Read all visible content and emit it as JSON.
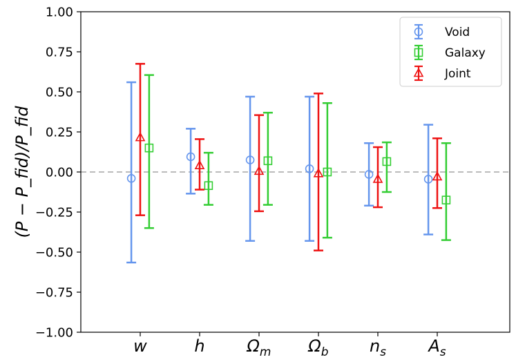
{
  "chart_data": {
    "type": "errorbar",
    "ylabel": "(P − P_fid)/P_fid",
    "ylim": [
      -1.0,
      1.0
    ],
    "yticks": [
      -1.0,
      -0.75,
      -0.5,
      -0.25,
      0.0,
      0.25,
      0.5,
      0.75,
      1.0
    ],
    "ytick_labels": [
      "−1.00",
      "−0.75",
      "−0.50",
      "−0.25",
      "0.00",
      "0.25",
      "0.50",
      "0.75",
      "1.00"
    ],
    "categories": [
      {
        "main": "w",
        "sub": ""
      },
      {
        "main": "h",
        "sub": ""
      },
      {
        "main": "Ω",
        "sub": "m"
      },
      {
        "main": "Ω",
        "sub": "b"
      },
      {
        "main": "n",
        "sub": "s"
      },
      {
        "main": "A",
        "sub": "s"
      }
    ],
    "reference_line": 0.0,
    "legend_position": "top-right",
    "series": [
      {
        "name": "Void",
        "marker": "circle",
        "color": "#6495ED",
        "offset": -0.15,
        "values": [
          -0.04,
          0.095,
          0.075,
          0.02,
          -0.015,
          -0.045
        ],
        "lower": [
          -0.565,
          -0.135,
          -0.43,
          -0.43,
          -0.21,
          -0.39
        ],
        "upper": [
          0.56,
          0.27,
          0.47,
          0.47,
          0.18,
          0.295
        ]
      },
      {
        "name": "Galaxy",
        "marker": "square",
        "color": "#32CD32",
        "offset": 0.15,
        "values": [
          0.15,
          -0.085,
          0.07,
          0.0,
          0.065,
          -0.175
        ],
        "lower": [
          -0.35,
          -0.205,
          -0.205,
          -0.41,
          -0.125,
          -0.425
        ],
        "upper": [
          0.605,
          0.12,
          0.37,
          0.43,
          0.185,
          0.18
        ]
      },
      {
        "name": "Joint",
        "marker": "triangle",
        "color": "#EE1111",
        "offset": 0.0,
        "values": [
          0.215,
          0.04,
          0.005,
          -0.01,
          -0.045,
          -0.03
        ],
        "lower": [
          -0.27,
          -0.11,
          -0.245,
          -0.49,
          -0.22,
          -0.225
        ],
        "upper": [
          0.675,
          0.205,
          0.355,
          0.49,
          0.155,
          0.21
        ]
      }
    ]
  }
}
